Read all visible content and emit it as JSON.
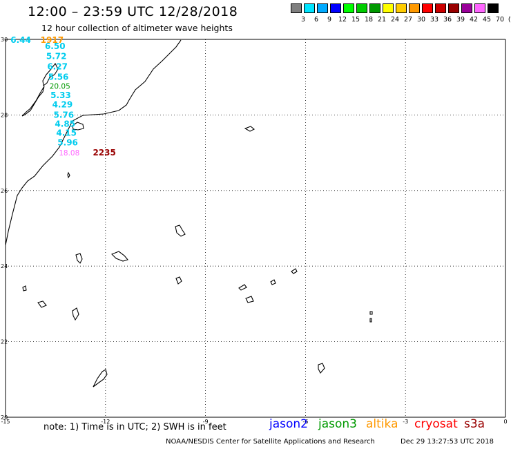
{
  "title": "12:00 – 23:59 UTC 12/28/2018",
  "subtitle": "12 hour collection of altimeter wave heights",
  "scale": {
    "labels": [
      "3",
      "6",
      "9",
      "12",
      "15",
      "18",
      "21",
      "24",
      "27",
      "30",
      "33",
      "36",
      "39",
      "42",
      "45",
      "70",
      "(ft)"
    ],
    "colors": [
      "#7f7f7f",
      "#00e5ff",
      "#00aaff",
      "#0000ff",
      "#00ff00",
      "#00cc00",
      "#009900",
      "#ffff00",
      "#ffcc00",
      "#ff9900",
      "#ff0000",
      "#cc0000",
      "#990000",
      "#990099",
      "#ff66ff",
      "#000000"
    ]
  },
  "axes": {
    "x_ticks": [
      "-15",
      "-12",
      "-9",
      "-6",
      "-3",
      "0"
    ],
    "y_ticks": [
      "30",
      "28",
      "26",
      "24",
      "22",
      "20"
    ]
  },
  "observations": [
    {
      "lat": 29.98,
      "lon": -14.85,
      "label": "6.44",
      "color": "#00ccee"
    },
    {
      "lat": 29.98,
      "lon": -13.95,
      "label": "1917",
      "color": "#ff9900"
    },
    {
      "lat": 29.82,
      "lon": -13.82,
      "label": "6.50",
      "color": "#00ccee"
    },
    {
      "lat": 29.55,
      "lon": -13.78,
      "label": "5.72",
      "color": "#00ccee"
    },
    {
      "lat": 29.28,
      "lon": -13.75,
      "label": "6.27",
      "color": "#00ccee"
    },
    {
      "lat": 29.0,
      "lon": -13.72,
      "label": "5.56",
      "color": "#00ccee"
    },
    {
      "lat": 28.77,
      "lon": -13.68,
      "label": "20.05",
      "color": "#009900"
    },
    {
      "lat": 28.52,
      "lon": -13.65,
      "label": "5.33",
      "color": "#00ccee"
    },
    {
      "lat": 28.27,
      "lon": -13.6,
      "label": "4.29",
      "color": "#00ccee"
    },
    {
      "lat": 28.0,
      "lon": -13.56,
      "label": "5.76",
      "color": "#00ccee"
    },
    {
      "lat": 27.76,
      "lon": -13.52,
      "label": "4.85",
      "color": "#00ccee"
    },
    {
      "lat": 27.52,
      "lon": -13.48,
      "label": "4.15",
      "color": "#00ccee"
    },
    {
      "lat": 27.27,
      "lon": -13.44,
      "label": "5.96",
      "color": "#00ccee"
    },
    {
      "lat": 27.0,
      "lon": -13.4,
      "label": "18.08",
      "color": "#ff66ff"
    },
    {
      "lat": 27.0,
      "lon": -12.38,
      "label": "2235",
      "color": "#990000"
    }
  ],
  "legend": {
    "note": "note:  1) Time is in UTC;  2) SWH is in feet",
    "satellites": [
      {
        "name": "jason2",
        "color": "#0000ff"
      },
      {
        "name": "jason3",
        "color": "#009900"
      },
      {
        "name": "altika",
        "color": "#ff9900"
      },
      {
        "name": "cryosat",
        "color": "#ff0000"
      },
      {
        "name": "s3a",
        "color": "#990000"
      }
    ]
  },
  "footer": {
    "credit": "NOAA/NESDIS Center for Satellite Applications and Research",
    "timestamp": "Dec 29 13:27:53 UTC 2018"
  }
}
